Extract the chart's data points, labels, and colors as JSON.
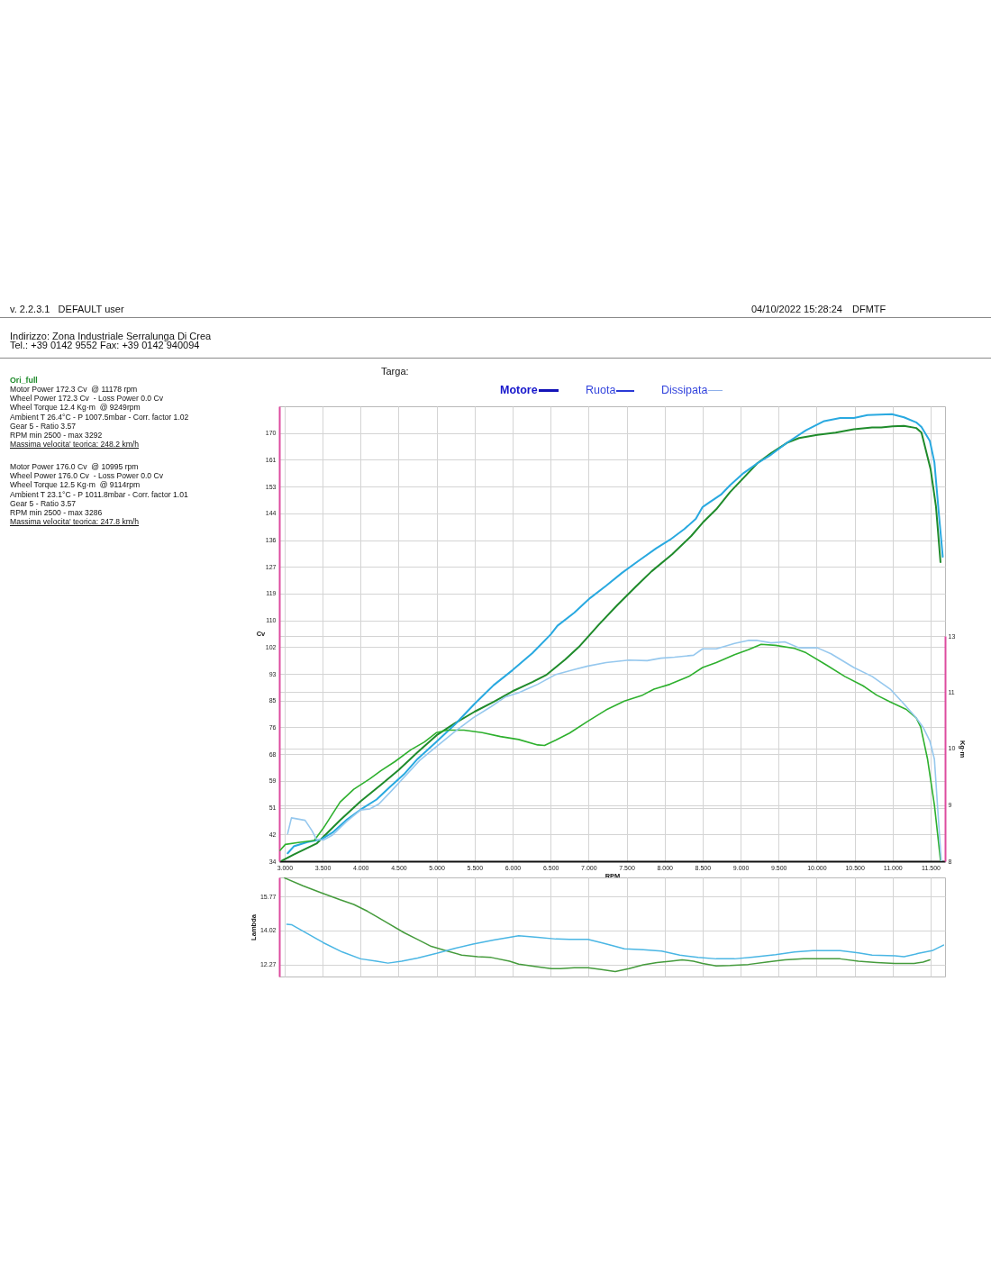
{
  "chart_data": [
    {
      "type": "other",
      "annotations": [
        "v. 2.2.3.1   DEFAULT user",
        "04/10/2022 15:28:24",
        "DFMTF",
        "Indirizzo: Zona Industriale Serralunga Di Crea",
        "Tel.: +39 0142 9552 Fax: +39 0142 940094"
      ]
    },
    {
      "type": "other",
      "annotations": [
        "Motor Power 172.3 Cv  @ 11178 rpm",
        "Wheel Power 172.3 Cv  - Loss Power 0.0 Cv",
        "Wheel Torque 12.4 Kg·m  @ 9249rpm",
        "Ambient T 26.4°C - P 1007.5mbar - Corr. factor 1.02",
        "Gear 5 - Ratio 3.57",
        "RPM min 2500 - max 3292",
        "Massima velocita' teorica: 248.2 km/h"
      ]
    },
    {
      "type": "other",
      "annotations": [
        "Motor Power 176.0 Cv  @ 10995 rpm",
        "Wheel Power 176.0 Cv  - Loss Power 0.0 Cv",
        "Wheel Torque 12.5 Kg·m  @ 9114rpm",
        "Ambient T 23.1°C - P 1011.8mbar - Corr. factor 1.01",
        "Gear 5 - Ratio 3.57",
        "RPM min 2500 - max 3286",
        "Massima velocita' teorica: 247.8 km/h"
      ]
    },
    {
      "type": "line",
      "subtitle": "Targa:",
      "xlabel": "RPM",
      "ylabel": "Cv",
      "y2label": "Kg·m",
      "annotations": [
        "Motore",
        "Ruota",
        "Dissipata"
      ],
      "grid": true,
      "legend": "left",
      "xlim": [
        2.93,
        11.69
      ],
      "xticks": [
        {
          "value": 3,
          "label": "3.000"
        },
        {
          "value": 3.5,
          "label": "3.500"
        },
        {
          "value": 4,
          "label": "4.000"
        },
        {
          "value": 4.5,
          "label": "4.500"
        },
        {
          "value": 5,
          "label": "5.000"
        },
        {
          "value": 5.5,
          "label": "5.500"
        },
        {
          "value": 6,
          "label": "6.000"
        },
        {
          "value": 6.5,
          "label": "6.500"
        },
        {
          "value": 7,
          "label": "7.000"
        },
        {
          "value": 7.5,
          "label": "7.500"
        },
        {
          "value": 8,
          "label": "8.000"
        },
        {
          "value": 8.5,
          "label": "8.500"
        },
        {
          "value": 9,
          "label": "9.000"
        },
        {
          "value": 9.5,
          "label": "9.500"
        },
        {
          "value": 10,
          "label": "10.000"
        },
        {
          "value": 10.5,
          "label": "10.500"
        },
        {
          "value": 11,
          "label": "11.000"
        },
        {
          "value": 11.5,
          "label": "11.500"
        }
      ],
      "ylim": [
        34,
        178.5
      ],
      "yticks": [
        34,
        {
          "value": 42.5,
          "label": "42"
        },
        51,
        {
          "value": 59.5,
          "label": "59"
        },
        68,
        {
          "value": 76.5,
          "label": "76"
        },
        85,
        {
          "value": 93.5,
          "label": "93"
        },
        102,
        {
          "value": 110.5,
          "label": "110"
        },
        119,
        {
          "value": 127.5,
          "label": "127"
        },
        136,
        {
          "value": 144.5,
          "label": "144"
        },
        153,
        {
          "value": 161.5,
          "label": "161"
        },
        170
      ],
      "y2lim": [
        8,
        12.57
      ],
      "y2ticks": [
        8,
        {
          "value": 9.14,
          "label": "9"
        },
        {
          "value": 10.29,
          "label": "10"
        },
        {
          "value": 11.43,
          "label": "11"
        },
        {
          "value": 12.57,
          "label": "13"
        }
      ],
      "series": [
        {
          "name": "Ori_full",
          "color": "#1f8b2b",
          "x": [
            2.96,
            3.12,
            3.42,
            3.73,
            4.0,
            4.27,
            4.5,
            4.75,
            5.0,
            5.24,
            5.5,
            5.75,
            6.0,
            6.26,
            6.44,
            6.69,
            6.87,
            7.0,
            7.14,
            7.38,
            7.62,
            7.83,
            8.1,
            8.35,
            8.5,
            8.68,
            8.86,
            9.04,
            9.22,
            9.4,
            9.61,
            9.77,
            10.01,
            10.25,
            10.49,
            10.73,
            10.85,
            11.0,
            11.15,
            11.31,
            11.38,
            11.5,
            11.57,
            11.63
          ],
          "values": [
            34.1,
            36.1,
            39.6,
            47.0,
            53.0,
            58.3,
            63.0,
            68.6,
            74.0,
            77.8,
            81.5,
            84.6,
            88.0,
            90.9,
            93.1,
            98.0,
            102.0,
            105.5,
            109.3,
            115.4,
            121.2,
            126.1,
            131.5,
            137.3,
            141.5,
            145.8,
            151.2,
            155.8,
            160.4,
            163.6,
            166.9,
            168.4,
            169.4,
            170.1,
            171.2,
            171.8,
            171.8,
            172.1,
            172.3,
            171.6,
            170.1,
            158.5,
            146.8,
            129.0
          ]
        },
        {
          "color": "#29a9e0",
          "x": [
            3.04,
            3.12,
            3.3,
            3.48,
            3.63,
            3.82,
            4.0,
            4.21,
            4.39,
            4.57,
            4.75,
            5.0,
            5.24,
            5.5,
            5.75,
            6.0,
            6.26,
            6.5,
            6.59,
            6.81,
            7.02,
            7.23,
            7.44,
            7.65,
            7.89,
            8.07,
            8.26,
            8.41,
            8.5,
            8.59,
            8.74,
            8.86,
            9.04,
            9.22,
            9.4,
            9.61,
            9.86,
            10.1,
            10.31,
            10.49,
            10.67,
            10.99,
            11.15,
            11.31,
            11.38,
            11.49,
            11.55,
            11.61,
            11.66
          ],
          "values": [
            36.5,
            38.7,
            40.1,
            40.9,
            43.1,
            47.2,
            50.4,
            53.6,
            57.7,
            61.6,
            66.5,
            72.0,
            77.4,
            84.0,
            89.9,
            94.7,
            100.1,
            106.0,
            108.8,
            112.9,
            117.6,
            121.5,
            125.6,
            129.3,
            133.4,
            136.1,
            139.5,
            142.7,
            146.5,
            148.0,
            150.4,
            153.4,
            157.3,
            160.4,
            163.1,
            166.9,
            170.9,
            173.8,
            174.8,
            174.8,
            175.7,
            176.0,
            175.0,
            173.4,
            171.9,
            167.5,
            160.7,
            143.9,
            130.7
          ]
        },
        {
          "color": "#2eb02e",
          "axis": "y2",
          "x": [
            2.94,
            3.01,
            3.18,
            3.39,
            3.51,
            3.73,
            3.91,
            4.12,
            4.27,
            4.45,
            4.66,
            4.84,
            5.0,
            5.14,
            5.36,
            5.6,
            5.84,
            6.08,
            6.33,
            6.42,
            6.57,
            6.75,
            6.99,
            7.23,
            7.47,
            7.71,
            7.86,
            8.07,
            8.32,
            8.5,
            8.68,
            8.92,
            9.1,
            9.27,
            9.46,
            9.71,
            9.86,
            10.13,
            10.37,
            10.61,
            10.79,
            10.97,
            11.18,
            11.31,
            11.37,
            11.46,
            11.55,
            11.63
          ],
          "values": [
            8.22,
            8.34,
            8.38,
            8.42,
            8.67,
            9.2,
            9.46,
            9.67,
            9.84,
            10.02,
            10.26,
            10.42,
            10.61,
            10.66,
            10.66,
            10.61,
            10.53,
            10.47,
            10.36,
            10.35,
            10.46,
            10.6,
            10.84,
            11.07,
            11.25,
            11.37,
            11.49,
            11.59,
            11.75,
            11.93,
            12.03,
            12.19,
            12.29,
            12.4,
            12.38,
            12.32,
            12.23,
            11.98,
            11.75,
            11.56,
            11.37,
            11.23,
            11.08,
            10.91,
            10.72,
            10.07,
            9.14,
            8.02
          ]
        },
        {
          "color": "#96c8ee",
          "axis": "y2",
          "x": [
            3.04,
            3.09,
            3.27,
            3.36,
            3.42,
            3.51,
            3.63,
            3.82,
            4.0,
            4.12,
            4.24,
            4.39,
            4.57,
            4.78,
            5.0,
            5.24,
            5.48,
            5.72,
            5.9,
            6.08,
            6.33,
            6.57,
            6.81,
            6.99,
            7.23,
            7.53,
            7.77,
            7.95,
            8.13,
            8.38,
            8.5,
            8.68,
            8.92,
            9.1,
            9.22,
            9.4,
            9.58,
            9.77,
            10.01,
            10.19,
            10.49,
            10.73,
            10.97,
            11.15,
            11.31,
            11.4,
            11.49,
            11.55,
            11.59,
            11.64
          ],
          "values": [
            8.56,
            8.88,
            8.83,
            8.62,
            8.44,
            8.43,
            8.53,
            8.81,
            9.04,
            9.06,
            9.16,
            9.4,
            9.7,
            10.05,
            10.33,
            10.63,
            10.91,
            11.14,
            11.33,
            11.42,
            11.59,
            11.79,
            11.89,
            11.96,
            12.03,
            12.08,
            12.07,
            12.12,
            12.14,
            12.18,
            12.31,
            12.31,
            12.42,
            12.48,
            12.48,
            12.43,
            12.45,
            12.33,
            12.33,
            12.21,
            11.93,
            11.75,
            11.49,
            11.19,
            10.91,
            10.72,
            10.44,
            10.07,
            9.14,
            8.0
          ]
        }
      ]
    },
    {
      "type": "line",
      "ylabel": "Lambda",
      "grid": true,
      "tick_labels": "y",
      "xlim": [
        2.93,
        11.69
      ],
      "xticks": [
        3,
        3.5,
        4,
        4.5,
        5,
        5.5,
        6,
        6.5,
        7,
        7.5,
        8,
        8.5,
        9,
        9.5,
        10,
        10.5,
        11,
        11.5
      ],
      "ylim": [
        11.65,
        16.75
      ],
      "yticks": [
        12.27,
        14.02,
        15.77
      ],
      "series": [
        {
          "color": "#459b3c",
          "x": [
            3.0,
            3.24,
            3.48,
            3.73,
            3.91,
            4.09,
            4.33,
            4.57,
            4.75,
            4.93,
            5.12,
            5.33,
            5.54,
            5.72,
            5.96,
            6.08,
            6.33,
            6.51,
            6.63,
            6.81,
            6.99,
            7.17,
            7.35,
            7.53,
            7.72,
            7.9,
            8.08,
            8.23,
            8.38,
            8.5,
            8.68,
            8.86,
            9.1,
            9.34,
            9.58,
            9.83,
            10.07,
            10.31,
            10.55,
            10.79,
            11.03,
            11.28,
            11.4,
            11.49
          ],
          "values": [
            16.72,
            16.32,
            15.96,
            15.6,
            15.36,
            15.01,
            14.46,
            13.91,
            13.56,
            13.2,
            12.98,
            12.75,
            12.67,
            12.63,
            12.44,
            12.29,
            12.15,
            12.06,
            12.06,
            12.1,
            12.1,
            12.01,
            11.91,
            12.06,
            12.25,
            12.37,
            12.44,
            12.51,
            12.44,
            12.32,
            12.2,
            12.22,
            12.27,
            12.39,
            12.51,
            12.56,
            12.56,
            12.56,
            12.44,
            12.37,
            12.32,
            12.32,
            12.39,
            12.51
          ]
        },
        {
          "color": "#4ab6e4",
          "x": [
            3.03,
            3.09,
            3.3,
            3.51,
            3.76,
            4.0,
            4.21,
            4.36,
            4.54,
            4.75,
            5.0,
            5.24,
            5.48,
            5.75,
            5.96,
            6.08,
            6.33,
            6.57,
            6.75,
            6.99,
            7.17,
            7.35,
            7.47,
            7.72,
            7.96,
            8.2,
            8.44,
            8.68,
            8.92,
            9.16,
            9.46,
            9.71,
            9.95,
            10.31,
            10.55,
            10.73,
            11.03,
            11.15,
            11.34,
            11.52,
            11.67
          ],
          "values": [
            14.34,
            14.32,
            13.86,
            13.39,
            12.91,
            12.56,
            12.44,
            12.34,
            12.44,
            12.6,
            12.84,
            13.1,
            13.32,
            13.53,
            13.67,
            13.75,
            13.67,
            13.58,
            13.56,
            13.56,
            13.39,
            13.2,
            13.08,
            13.03,
            12.96,
            12.75,
            12.63,
            12.56,
            12.56,
            12.65,
            12.77,
            12.91,
            12.98,
            12.98,
            12.87,
            12.75,
            12.72,
            12.67,
            12.84,
            12.98,
            13.27
          ]
        }
      ]
    }
  ]
}
